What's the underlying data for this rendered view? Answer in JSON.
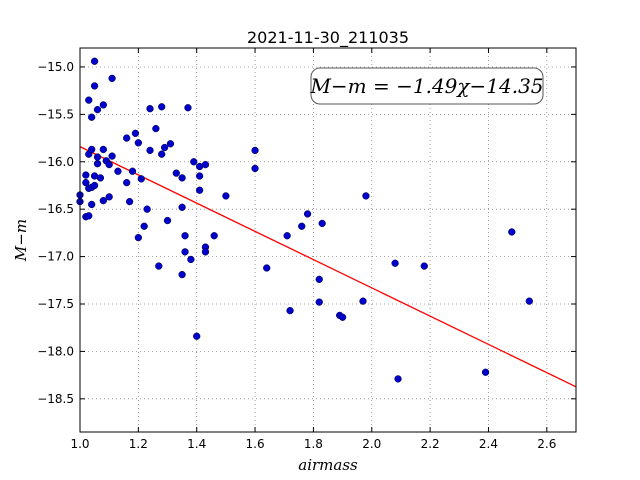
{
  "chart_data": {
    "type": "scatter",
    "title": "2021-11-30_211035",
    "xlabel": "airmass",
    "ylabel": "M−m",
    "xlim": [
      1.0,
      2.7
    ],
    "ylim": [
      -18.85,
      -14.8
    ],
    "grid": true,
    "xticks": [
      1.0,
      1.2,
      1.4,
      1.6,
      1.8,
      2.0,
      2.2,
      2.4,
      2.6
    ],
    "xtick_labels": [
      "1.0",
      "1.2",
      "1.4",
      "1.6",
      "1.8",
      "2.0",
      "2.2",
      "2.4",
      "2.6"
    ],
    "yticks": [
      -15.0,
      -15.5,
      -16.0,
      -16.5,
      -17.0,
      -17.5,
      -18.0,
      -18.5
    ],
    "ytick_labels": [
      "−15.0",
      "−15.5",
      "−16.0",
      "−16.5",
      "−17.0",
      "−17.5",
      "−18.0",
      "−18.5"
    ],
    "annotation": "M−m = −1.49χ−14.35",
    "fit": {
      "slope": -1.49,
      "intercept": -14.35,
      "color": "#ff0000"
    },
    "point_color": "#0000cc",
    "series": [
      {
        "points": [
          [
            1.0,
            -16.35
          ],
          [
            1.0,
            -16.42
          ],
          [
            1.02,
            -16.58
          ],
          [
            1.03,
            -16.57
          ],
          [
            1.02,
            -16.22
          ],
          [
            1.03,
            -16.28
          ],
          [
            1.04,
            -16.27
          ],
          [
            1.05,
            -16.25
          ],
          [
            1.02,
            -16.14
          ],
          [
            1.05,
            -16.15
          ],
          [
            1.06,
            -16.02
          ],
          [
            1.07,
            -16.17
          ],
          [
            1.03,
            -15.92
          ],
          [
            1.04,
            -15.87
          ],
          [
            1.06,
            -15.95
          ],
          [
            1.08,
            -15.87
          ],
          [
            1.09,
            -15.99
          ],
          [
            1.1,
            -16.03
          ],
          [
            1.11,
            -15.94
          ],
          [
            1.1,
            -16.37
          ],
          [
            1.08,
            -16.41
          ],
          [
            1.04,
            -16.45
          ],
          [
            1.03,
            -15.35
          ],
          [
            1.04,
            -15.53
          ],
          [
            1.06,
            -15.45
          ],
          [
            1.08,
            -15.4
          ],
          [
            1.05,
            -15.2
          ],
          [
            1.11,
            -15.12
          ],
          [
            1.05,
            -14.94
          ],
          [
            1.13,
            -16.1
          ],
          [
            1.16,
            -15.75
          ],
          [
            1.18,
            -16.1
          ],
          [
            1.17,
            -16.42
          ],
          [
            1.16,
            -16.22
          ],
          [
            1.19,
            -15.7
          ],
          [
            1.2,
            -15.8
          ],
          [
            1.21,
            -16.18
          ],
          [
            1.22,
            -16.68
          ],
          [
            1.2,
            -16.8
          ],
          [
            1.23,
            -16.5
          ],
          [
            1.24,
            -15.44
          ],
          [
            1.26,
            -15.65
          ],
          [
            1.28,
            -15.42
          ],
          [
            1.28,
            -15.92
          ],
          [
            1.29,
            -15.85
          ],
          [
            1.31,
            -15.81
          ],
          [
            1.24,
            -15.88
          ],
          [
            1.27,
            -17.1
          ],
          [
            1.3,
            -16.62
          ],
          [
            1.33,
            -16.12
          ],
          [
            1.35,
            -16.17
          ],
          [
            1.35,
            -16.48
          ],
          [
            1.36,
            -16.78
          ],
          [
            1.36,
            -16.95
          ],
          [
            1.35,
            -17.19
          ],
          [
            1.37,
            -15.43
          ],
          [
            1.39,
            -16.0
          ],
          [
            1.41,
            -16.05
          ],
          [
            1.41,
            -16.15
          ],
          [
            1.43,
            -16.03
          ],
          [
            1.41,
            -16.3
          ],
          [
            1.38,
            -17.03
          ],
          [
            1.43,
            -16.9
          ],
          [
            1.43,
            -16.95
          ],
          [
            1.46,
            -16.78
          ],
          [
            1.4,
            -17.84
          ],
          [
            1.5,
            -16.36
          ],
          [
            1.6,
            -15.88
          ],
          [
            1.6,
            -16.07
          ],
          [
            1.64,
            -17.12
          ],
          [
            1.71,
            -16.78
          ],
          [
            1.72,
            -17.57
          ],
          [
            1.76,
            -16.68
          ],
          [
            1.78,
            -16.55
          ],
          [
            1.82,
            -17.24
          ],
          [
            1.82,
            -17.48
          ],
          [
            1.83,
            -16.65
          ],
          [
            1.89,
            -17.62
          ],
          [
            1.9,
            -17.64
          ],
          [
            1.97,
            -17.47
          ],
          [
            1.98,
            -16.36
          ],
          [
            2.08,
            -17.07
          ],
          [
            2.09,
            -18.29
          ],
          [
            2.18,
            -17.1
          ],
          [
            2.39,
            -18.22
          ],
          [
            2.48,
            -16.74
          ],
          [
            2.54,
            -17.47
          ]
        ]
      }
    ]
  }
}
